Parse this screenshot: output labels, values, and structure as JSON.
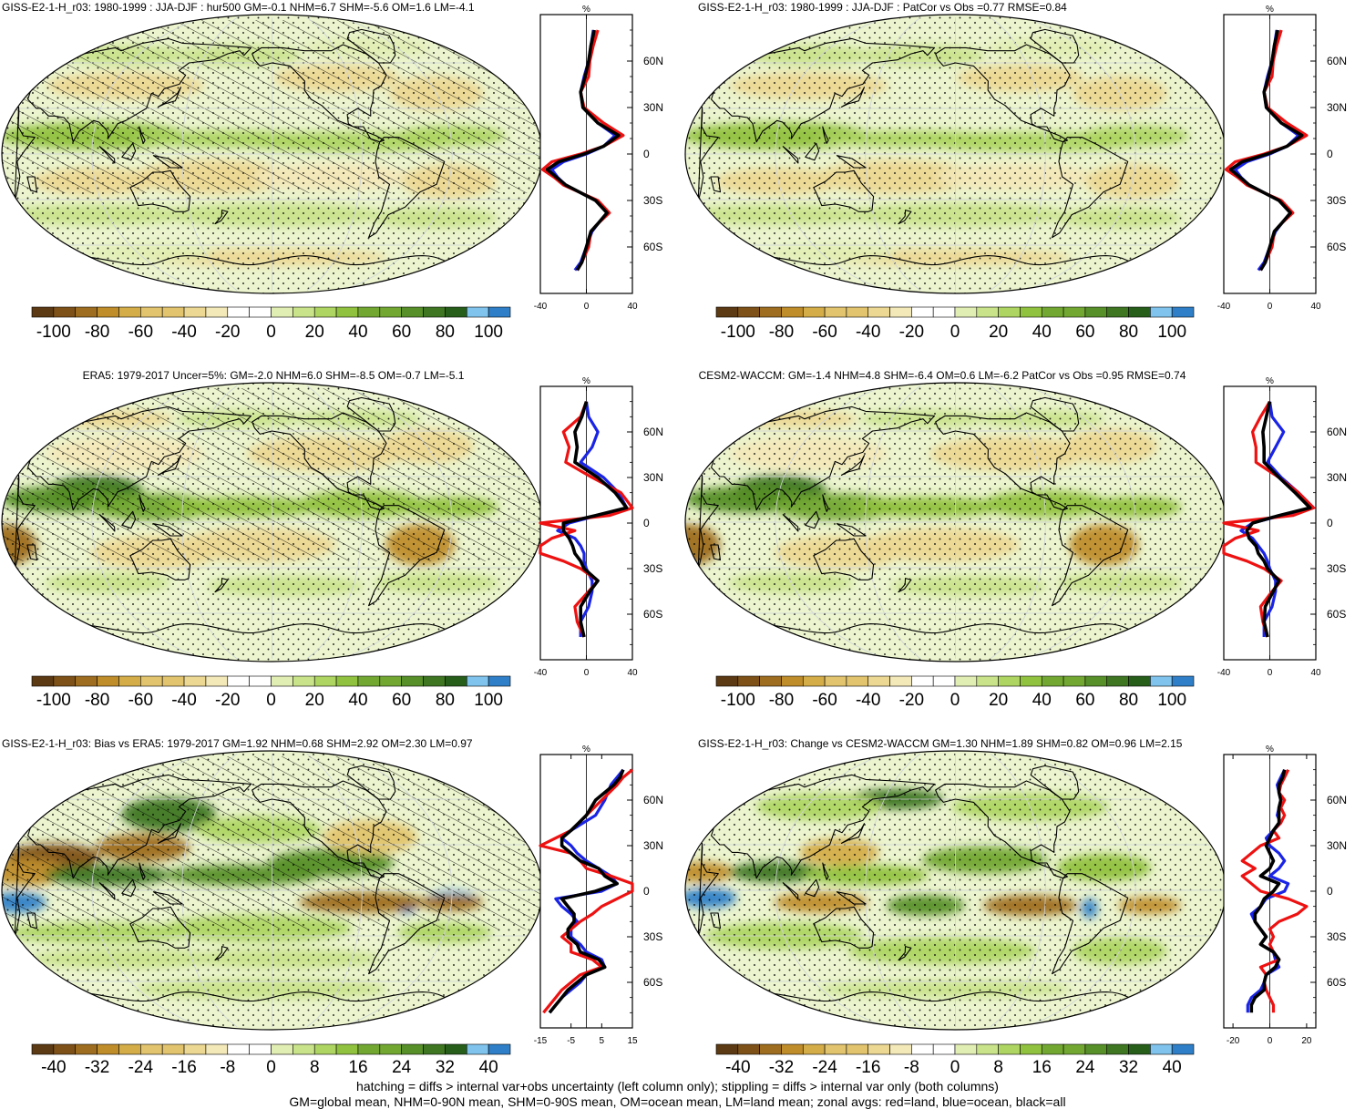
{
  "palettes": {
    "brown_green": [
      "#5c3a13",
      "#7e5118",
      "#9e6d1f",
      "#bf8d2a",
      "#d4ad48",
      "#e2c46e",
      "#ecd893",
      "#f3e8b8",
      "#ffffff",
      "#ffffff",
      "#e1eeb3",
      "#c9e38b",
      "#aed562",
      "#91c23f",
      "#72a832",
      "#578f28",
      "#3e7622",
      "#275e1a",
      "#80c4ee",
      "#2f7fc8"
    ]
  },
  "panels": [
    {
      "id": "p1",
      "title": "GISS-E2-1-H_r03: 1980-1999 : JJA-DJF : hur500 GM=-0.1 NHM=6.7 SHM=-5.6 OM=1.6 LM=-4.1",
      "hatched": true,
      "pattern": "mean",
      "colorbar": {
        "ticks": [
          "-100",
          "-80",
          "-60",
          "-40",
          "-20",
          "0",
          "20",
          "40",
          "60",
          "80",
          "100"
        ]
      },
      "profile": {
        "unit": "%",
        "lat_labels": [
          "60N",
          "30N",
          "0",
          "30S",
          "60S"
        ],
        "x_ticks": [
          "-40",
          "0",
          "40"
        ],
        "x_range": [
          -40,
          40
        ],
        "lat": [
          80,
          70,
          60,
          50,
          40,
          30,
          20,
          12,
          5,
          0,
          -5,
          -10,
          -15,
          -20,
          -30,
          -38,
          -45,
          -50,
          -60,
          -70,
          -75
        ],
        "land": [
          10,
          6,
          3,
          2,
          -5,
          -2,
          15,
          32,
          15,
          -5,
          -30,
          -38,
          -28,
          -20,
          10,
          20,
          10,
          4,
          2,
          -4,
          -8
        ],
        "ocean": [
          6,
          4,
          2,
          -2,
          -5,
          -3,
          10,
          25,
          15,
          0,
          -20,
          -30,
          -25,
          -18,
          8,
          18,
          10,
          5,
          0,
          -5,
          -10
        ],
        "all": [
          7,
          4,
          2,
          -1,
          -5,
          -3,
          10,
          28,
          15,
          -2,
          -24,
          -34,
          -26,
          -18,
          8,
          18,
          10,
          4,
          0,
          -4,
          -8
        ]
      }
    },
    {
      "id": "p2",
      "title": "GISS-E2-1-H_r03: 1980-1999 : JJA-DJF : PatCor vs Obs =0.77 RMSE=0.84",
      "hatched": false,
      "pattern": "mean",
      "colorbar": {
        "ticks": [
          "-100",
          "-80",
          "-60",
          "-40",
          "-20",
          "0",
          "20",
          "40",
          "60",
          "80",
          "100"
        ]
      },
      "profile": {
        "unit": "%",
        "lat_labels": [
          "60N",
          "30N",
          "0",
          "30S",
          "60S"
        ],
        "x_ticks": [
          "-40",
          "0",
          "40"
        ],
        "x_range": [
          -40,
          40
        ],
        "lat": [
          80,
          70,
          60,
          50,
          40,
          30,
          20,
          12,
          5,
          0,
          -5,
          -10,
          -15,
          -20,
          -30,
          -38,
          -45,
          -50,
          -60,
          -70,
          -75
        ],
        "land": [
          10,
          6,
          3,
          2,
          -5,
          -2,
          15,
          32,
          15,
          -5,
          -30,
          -38,
          -28,
          -20,
          10,
          20,
          10,
          4,
          2,
          -4,
          -8
        ],
        "ocean": [
          6,
          4,
          2,
          -2,
          -5,
          -3,
          10,
          25,
          15,
          0,
          -20,
          -30,
          -25,
          -18,
          8,
          18,
          10,
          5,
          0,
          -5,
          -10
        ],
        "all": [
          7,
          4,
          2,
          -1,
          -5,
          -3,
          10,
          28,
          15,
          -2,
          -24,
          -34,
          -26,
          -18,
          8,
          18,
          10,
          4,
          0,
          -4,
          -8
        ]
      }
    },
    {
      "id": "p3",
      "title": "ERA5: 1979-2017 Uncer=5%: GM=-2.0 NHM=6.0 SHM=-8.5 OM=-0.7 LM=-5.1",
      "hatched": true,
      "pattern": "obs",
      "colorbar": {
        "ticks": [
          "-100",
          "-80",
          "-60",
          "-40",
          "-20",
          "0",
          "20",
          "40",
          "60",
          "80",
          "100"
        ]
      },
      "profile": {
        "unit": "%",
        "lat_labels": [
          "60N",
          "30N",
          "0",
          "30S",
          "60S"
        ],
        "x_ticks": [
          "-40",
          "0",
          "40"
        ],
        "x_range": [
          -40,
          40
        ],
        "lat": [
          80,
          70,
          60,
          50,
          40,
          30,
          20,
          10,
          5,
          0,
          -5,
          -10,
          -15,
          -20,
          -25,
          -30,
          -38,
          -45,
          -55,
          -65,
          -75
        ],
        "land": [
          0,
          -5,
          -20,
          -15,
          -18,
          5,
          30,
          40,
          20,
          -40,
          -10,
          -30,
          -40,
          -40,
          -20,
          -5,
          10,
          2,
          -10,
          -8,
          -2
        ],
        "ocean": [
          0,
          2,
          10,
          5,
          -5,
          15,
          28,
          35,
          10,
          -15,
          -25,
          -10,
          -5,
          -2,
          -2,
          0,
          5,
          5,
          2,
          -5,
          -5
        ],
        "all": [
          0,
          -4,
          -10,
          -8,
          -10,
          10,
          25,
          35,
          8,
          -20,
          -20,
          -15,
          -12,
          -10,
          -5,
          -2,
          10,
          3,
          -5,
          -5,
          -2
        ]
      }
    },
    {
      "id": "p4",
      "title": "CESM2-WACCM: GM=-1.4 NHM=4.8 SHM=-6.4 OM=0.6 LM=-6.2 PatCor vs Obs =0.95 RMSE=0.74",
      "hatched": false,
      "pattern": "obs",
      "colorbar": {
        "ticks": [
          "-100",
          "-80",
          "-60",
          "-40",
          "-20",
          "0",
          "20",
          "40",
          "60",
          "80",
          "100"
        ]
      },
      "profile": {
        "unit": "%",
        "lat_labels": [
          "60N",
          "30N",
          "0",
          "30S",
          "60S"
        ],
        "x_ticks": [
          "-40",
          "0",
          "40"
        ],
        "x_range": [
          -40,
          40
        ],
        "lat": [
          80,
          70,
          60,
          50,
          40,
          30,
          20,
          10,
          5,
          0,
          -5,
          -10,
          -15,
          -20,
          -25,
          -30,
          -38,
          -45,
          -55,
          -65,
          -75
        ],
        "land": [
          0,
          -8,
          -15,
          -12,
          -12,
          8,
          25,
          38,
          20,
          -40,
          -10,
          -30,
          -40,
          -40,
          -20,
          -5,
          10,
          2,
          -8,
          -6,
          -2
        ],
        "ocean": [
          0,
          2,
          12,
          5,
          -2,
          10,
          25,
          38,
          10,
          -15,
          -25,
          -15,
          -10,
          -5,
          -2,
          0,
          5,
          5,
          2,
          -5,
          -5
        ],
        "all": [
          0,
          -3,
          -6,
          -5,
          -5,
          8,
          22,
          35,
          8,
          -15,
          -20,
          -18,
          -12,
          -10,
          -5,
          -2,
          8,
          3,
          -4,
          -5,
          -2
        ]
      }
    },
    {
      "id": "p5",
      "title": "GISS-E2-1-H_r03: Bias vs ERA5: 1979-2017 GM=1.92 NHM=0.68 SHM=2.92 OM=2.30 LM=0.97",
      "hatched": true,
      "pattern": "bias",
      "colorbar": {
        "ticks": [
          "-40",
          "-32",
          "-24",
          "-16",
          "-8",
          "0",
          "8",
          "16",
          "24",
          "32",
          "40"
        ]
      },
      "profile": {
        "unit": "%",
        "lat_labels": [
          "60N",
          "30N",
          "0",
          "30S",
          "60S"
        ],
        "x_ticks": [
          "-15",
          "-5",
          "5",
          "15"
        ],
        "x_range": [
          -15,
          15
        ],
        "lat": [
          80,
          75,
          70,
          60,
          50,
          40,
          35,
          30,
          25,
          20,
          15,
          10,
          5,
          0,
          -5,
          -10,
          -15,
          -20,
          -25,
          -30,
          -35,
          -40,
          -45,
          -50,
          -55,
          -60,
          -65,
          -70,
          -75,
          -80
        ],
        "land": [
          15,
          12,
          10,
          5,
          0,
          -5,
          -10,
          -15,
          -5,
          -2,
          0,
          8,
          15,
          15,
          10,
          5,
          2,
          -2,
          -5,
          -8,
          -5,
          -5,
          2,
          5,
          -2,
          -5,
          -8,
          -10,
          -12,
          -14
        ],
        "ocean": [
          12,
          10,
          8,
          6,
          3,
          -5,
          -8,
          -5,
          -3,
          0,
          4,
          8,
          10,
          5,
          -10,
          -8,
          -5,
          -3,
          -5,
          -5,
          -2,
          0,
          5,
          6,
          0,
          -2,
          -5,
          -8,
          -10,
          -12
        ],
        "all": [
          12,
          11,
          9,
          3,
          0,
          -5,
          -8,
          -8,
          -5,
          -2,
          4,
          6,
          10,
          3,
          -8,
          -6,
          -4,
          -4,
          -6,
          -6,
          -3,
          -2,
          4,
          6,
          0,
          -3,
          -6,
          -8,
          -10,
          -12
        ]
      }
    },
    {
      "id": "p6",
      "title": "GISS-E2-1-H_r03: Change vs CESM2-WACCM GM=1.30 NHM=1.89 SHM=0.82 OM=0.96 LM=2.15",
      "hatched": false,
      "pattern": "change",
      "colorbar": {
        "ticks": [
          "-40",
          "-32",
          "-24",
          "-16",
          "-8",
          "0",
          "8",
          "16",
          "24",
          "32",
          "40"
        ]
      },
      "profile": {
        "unit": "%",
        "lat_labels": [
          "60N",
          "30N",
          "0",
          "30S",
          "60S"
        ],
        "x_ticks": [
          "-20",
          "0",
          "20"
        ],
        "x_range": [
          -25,
          25
        ],
        "lat": [
          80,
          75,
          70,
          65,
          60,
          55,
          50,
          45,
          40,
          35,
          30,
          25,
          20,
          15,
          10,
          5,
          0,
          -5,
          -10,
          -15,
          -20,
          -25,
          -30,
          -35,
          -40,
          -45,
          -50,
          -55,
          -60,
          -65,
          -70,
          -75,
          -80
        ],
        "land": [
          10,
          8,
          6,
          5,
          8,
          6,
          8,
          6,
          2,
          5,
          -5,
          -10,
          -15,
          -8,
          -15,
          -10,
          -5,
          10,
          20,
          15,
          5,
          0,
          2,
          0,
          2,
          5,
          -5,
          -2,
          -3,
          -2,
          0,
          2,
          2
        ],
        "ocean": [
          8,
          6,
          4,
          5,
          6,
          5,
          4,
          6,
          2,
          -2,
          0,
          5,
          8,
          5,
          0,
          10,
          8,
          -2,
          -5,
          -10,
          -8,
          -5,
          -2,
          -5,
          2,
          3,
          5,
          -2,
          -3,
          -5,
          -10,
          -12,
          -12
        ],
        "all": [
          8,
          7,
          5,
          5,
          6,
          5,
          5,
          5,
          2,
          0,
          -2,
          0,
          2,
          0,
          -5,
          5,
          2,
          -3,
          -5,
          -8,
          -8,
          -5,
          -2,
          -5,
          2,
          5,
          3,
          -2,
          -3,
          -3,
          -8,
          -10,
          -10
        ]
      }
    }
  ],
  "footer": {
    "line1": "hatching = diffs > internal var+obs uncertainty (left column only); stippling = diffs > internal var only (both columns)",
    "line2": "GM=global mean, NHM=0-90N mean, SHM=0-90S mean, OM=ocean mean, LM=land mean; zonal avgs: red=land, blue=ocean, black=all"
  },
  "line_colors": {
    "land": "#ee1111",
    "ocean": "#1a24e6",
    "all": "#000000"
  }
}
